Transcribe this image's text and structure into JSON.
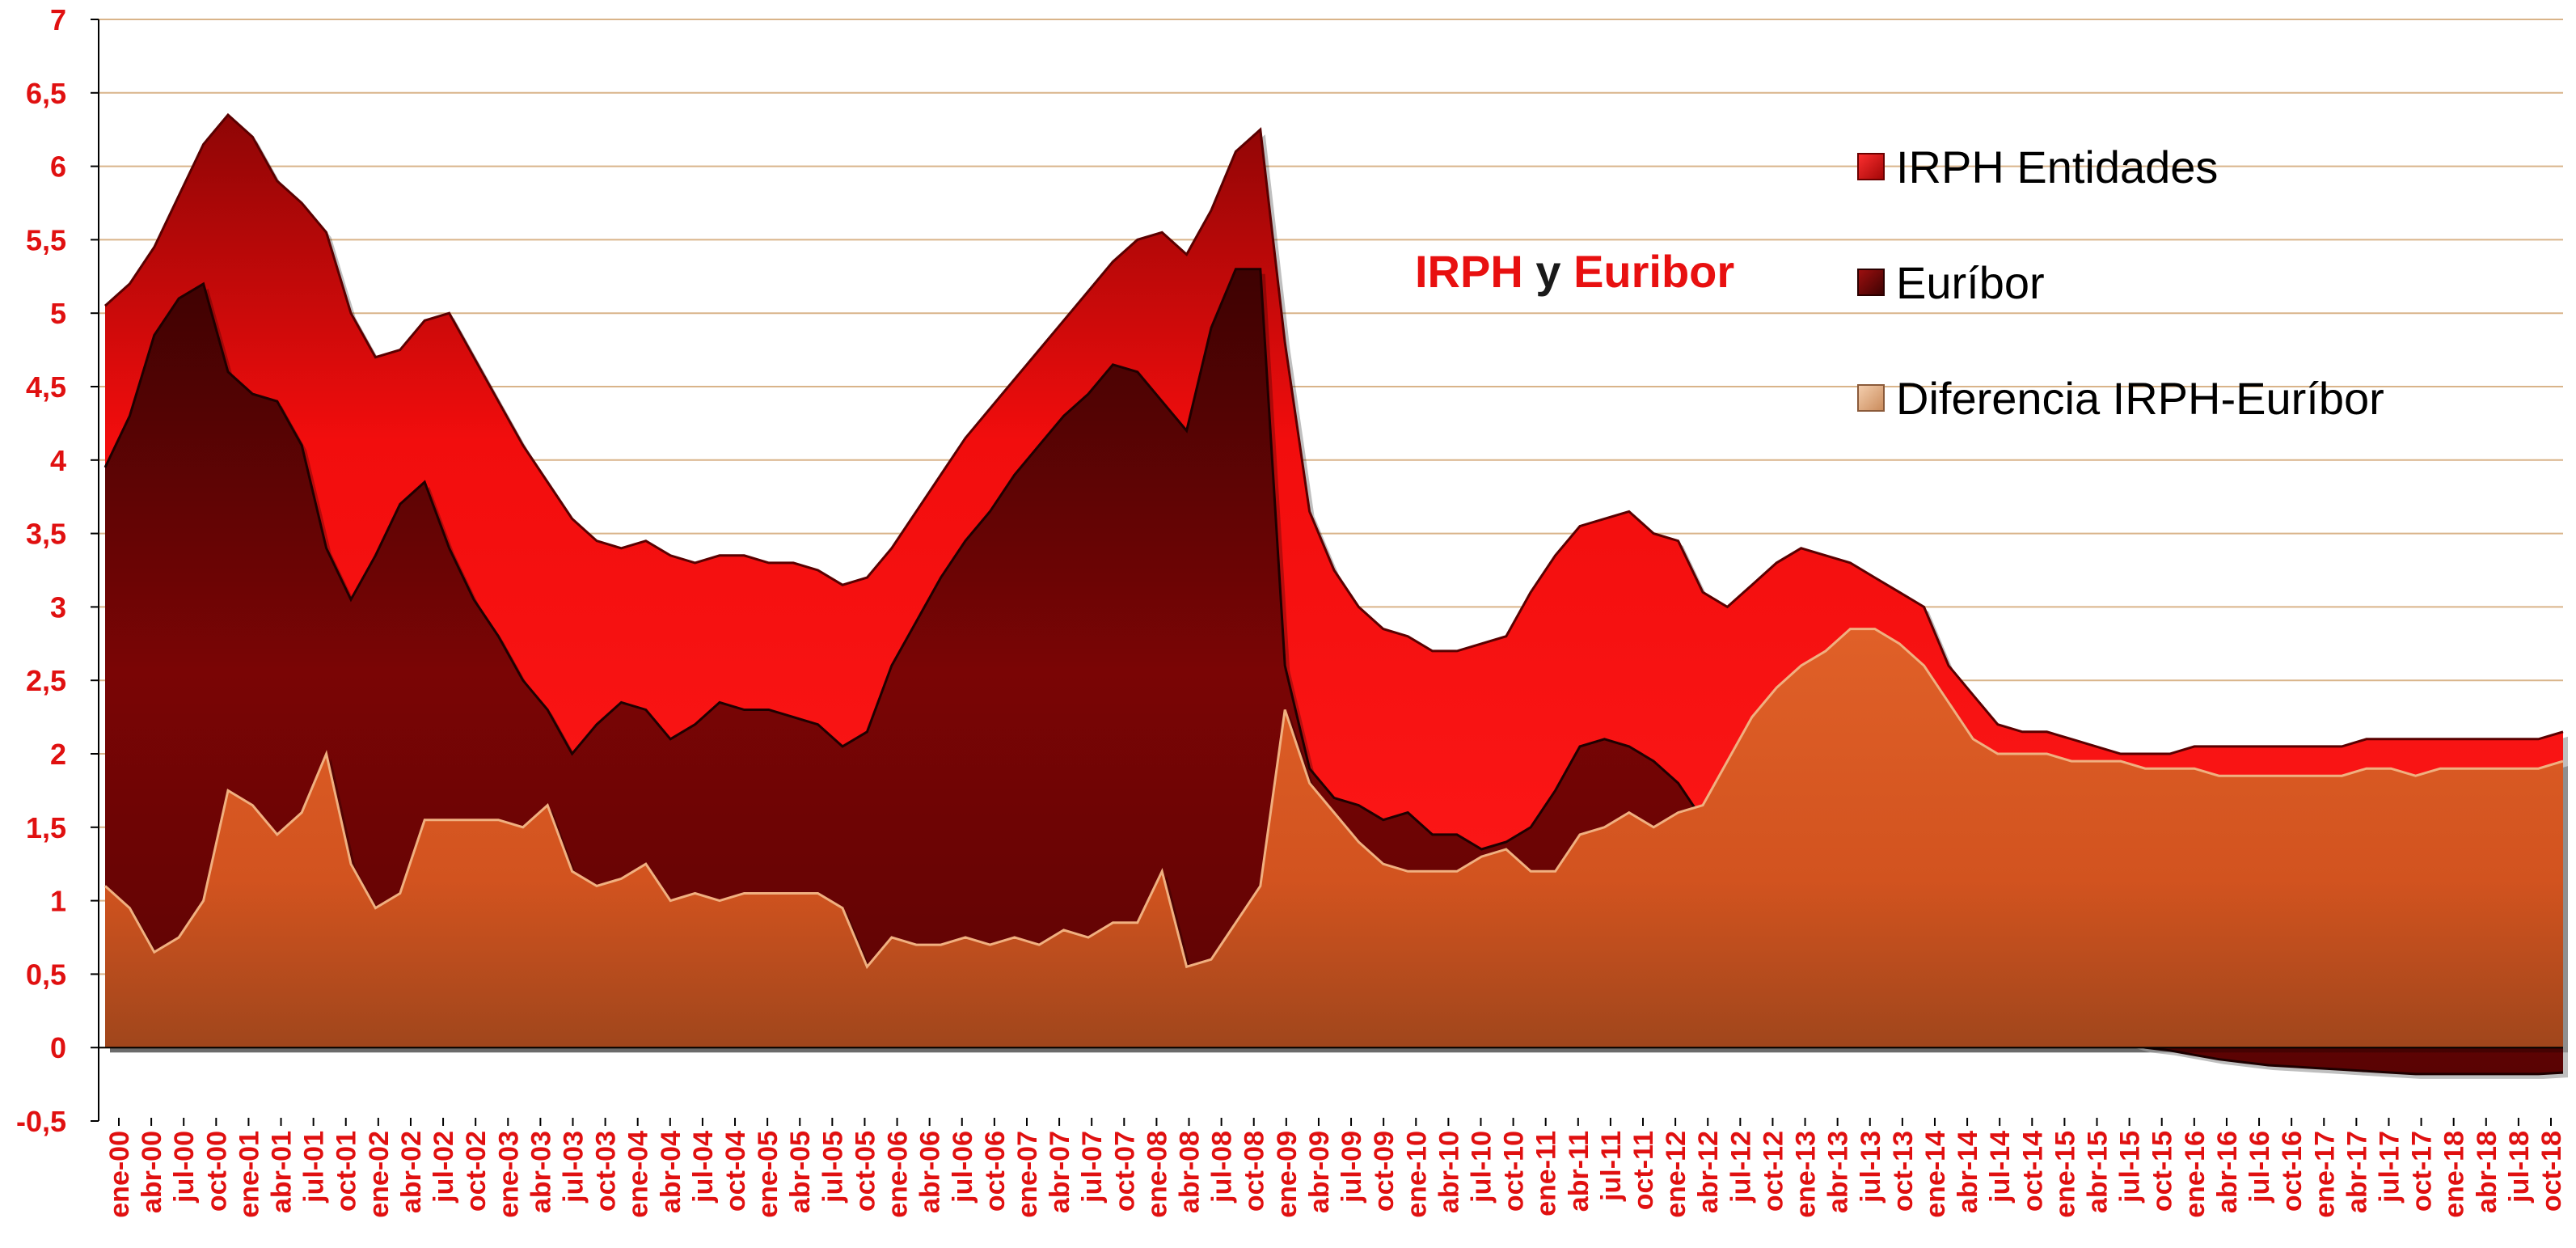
{
  "chart_data": {
    "type": "area",
    "title_parts": [
      "IRPH",
      " y ",
      "Euribor"
    ],
    "colors": {
      "irph": "#f20d0d",
      "irph_top": "#9e0606",
      "euribor": "#7a0505",
      "euribor_top": "#4a0202",
      "diff": "#d9531e",
      "diff_low": "#a34a1e",
      "diff_legend": "#e8b48c",
      "tick_labels": "#e01010",
      "gridline": "#d9b48a"
    },
    "ylim": [
      -0.5,
      7
    ],
    "yticks": [
      "7",
      "6,5",
      "6",
      "5,5",
      "5",
      "4,5",
      "4",
      "3,5",
      "3",
      "2,5",
      "2",
      "1,5",
      "1",
      "0,5",
      "0",
      "-0,5"
    ],
    "ytick_values": [
      7,
      6.5,
      6,
      5.5,
      5,
      4.5,
      4,
      3.5,
      3,
      2.5,
      2,
      1.5,
      1,
      0.5,
      0,
      -0.5
    ],
    "xtick_labels": [
      "ene-00",
      "abr-00",
      "jul-00",
      "oct-00",
      "ene-01",
      "abr-01",
      "jul-01",
      "oct-01",
      "ene-02",
      "abr-02",
      "jul-02",
      "oct-02",
      "ene-03",
      "abr-03",
      "jul-03",
      "oct-03",
      "ene-04",
      "abr-04",
      "jul-04",
      "oct-04",
      "ene-05",
      "abr-05",
      "jul-05",
      "oct-05",
      "ene-06",
      "abr-06",
      "jul-06",
      "oct-06",
      "ene-07",
      "abr-07",
      "jul-07",
      "oct-07",
      "ene-08",
      "abr-08",
      "jul-08",
      "oct-08",
      "ene-09",
      "abr-09",
      "jul-09",
      "oct-09",
      "ene-10",
      "abr-10",
      "jul-10",
      "oct-10",
      "ene-11",
      "abr-11",
      "jul-11",
      "oct-11",
      "ene-12",
      "abr-12",
      "jul-12",
      "oct-12",
      "ene-13",
      "abr-13",
      "jul-13",
      "oct-13",
      "ene-14",
      "abr-14",
      "jul-14",
      "oct-14",
      "ene-15",
      "abr-15",
      "jul-15",
      "oct-15",
      "ene-16",
      "abr-16",
      "jul-16",
      "oct-16",
      "ene-17",
      "abr-17",
      "jul-17",
      "oct-17",
      "ene-18",
      "abr-18",
      "jul-18",
      "oct-18"
    ],
    "legend": {
      "placement": "top-right",
      "entries": [
        "IRPH Entidades",
        "Euríbor",
        "Diferencia IRPH-Euríbor"
      ]
    },
    "grid": true,
    "series": [
      {
        "name": "IRPH Entidades",
        "values": [
          5.05,
          5.2,
          5.45,
          5.8,
          6.15,
          6.35,
          6.2,
          5.9,
          5.75,
          5.55,
          5.0,
          4.7,
          4.75,
          4.95,
          5.0,
          4.7,
          4.4,
          4.1,
          3.85,
          3.6,
          3.45,
          3.4,
          3.45,
          3.35,
          3.3,
          3.35,
          3.35,
          3.3,
          3.3,
          3.25,
          3.15,
          3.2,
          3.4,
          3.65,
          3.9,
          4.15,
          4.35,
          4.55,
          4.75,
          4.95,
          5.15,
          5.35,
          5.5,
          5.55,
          5.4,
          5.7,
          6.1,
          6.25,
          4.8,
          3.65,
          3.25,
          3.0,
          2.85,
          2.8,
          2.7,
          2.7,
          2.75,
          2.8,
          3.1,
          3.35,
          3.55,
          3.6,
          3.65,
          3.5,
          3.45,
          3.1,
          3.0,
          3.15,
          3.3,
          3.4,
          3.35,
          3.3,
          3.2,
          3.1,
          3.0,
          2.6,
          2.4,
          2.2,
          2.15,
          2.15,
          2.1,
          2.05,
          2.0,
          2.0,
          2.0,
          2.05,
          2.05,
          2.05,
          2.05,
          2.05,
          2.05,
          2.05,
          2.1,
          2.1,
          2.1,
          2.1,
          2.1,
          2.1,
          2.1,
          2.1,
          2.15
        ]
      },
      {
        "name": "Euríbor",
        "values": [
          3.95,
          4.3,
          4.85,
          5.1,
          5.2,
          4.6,
          4.45,
          4.4,
          4.1,
          3.4,
          3.05,
          3.35,
          3.7,
          3.85,
          3.4,
          3.05,
          2.8,
          2.5,
          2.3,
          2.0,
          2.2,
          2.35,
          2.3,
          2.1,
          2.2,
          2.35,
          2.3,
          2.3,
          2.25,
          2.2,
          2.05,
          2.15,
          2.6,
          2.9,
          3.2,
          3.45,
          3.65,
          3.9,
          4.1,
          4.3,
          4.45,
          4.65,
          4.6,
          4.4,
          4.2,
          4.9,
          5.3,
          5.3,
          2.6,
          1.9,
          1.7,
          1.65,
          1.55,
          1.6,
          1.45,
          1.45,
          1.35,
          1.4,
          1.5,
          1.75,
          2.05,
          2.1,
          2.05,
          1.95,
          1.8,
          1.55,
          1.3,
          1.2,
          1.15,
          1.15,
          1.1,
          1.05,
          0.95,
          0.85,
          0.75,
          0.6,
          0.45,
          0.4,
          0.3,
          0.2,
          0.15,
          0.1,
          0.05,
          0.0,
          -0.02,
          -0.05,
          -0.08,
          -0.1,
          -0.12,
          -0.13,
          -0.14,
          -0.15,
          -0.16,
          -0.17,
          -0.18,
          -0.18,
          -0.18,
          -0.18,
          -0.18,
          -0.18,
          -0.17
        ]
      },
      {
        "name": "Diferencia IRPH-Euríbor",
        "values": [
          1.1,
          0.95,
          0.65,
          0.75,
          1.0,
          1.75,
          1.65,
          1.45,
          1.6,
          2.0,
          1.25,
          0.95,
          1.05,
          1.55,
          1.55,
          1.55,
          1.55,
          1.5,
          1.65,
          1.2,
          1.1,
          1.15,
          1.25,
          1.0,
          1.05,
          1.0,
          1.05,
          1.05,
          1.05,
          1.05,
          0.95,
          0.55,
          0.75,
          0.7,
          0.7,
          0.75,
          0.7,
          0.75,
          0.7,
          0.8,
          0.75,
          0.85,
          0.85,
          1.2,
          0.55,
          0.6,
          0.85,
          1.1,
          2.3,
          1.8,
          1.6,
          1.4,
          1.25,
          1.2,
          1.2,
          1.2,
          1.3,
          1.35,
          1.2,
          1.2,
          1.45,
          1.5,
          1.6,
          1.5,
          1.6,
          1.65,
          1.95,
          2.25,
          2.45,
          2.6,
          2.7,
          2.85,
          2.85,
          2.75,
          2.6,
          2.35,
          2.1,
          2.0,
          2.0,
          2.0,
          1.95,
          1.95,
          1.95,
          1.9,
          1.9,
          1.9,
          1.85,
          1.85,
          1.85,
          1.85,
          1.85,
          1.85,
          1.9,
          1.9,
          1.85,
          1.9,
          1.9,
          1.9,
          1.9,
          1.9,
          1.95
        ]
      }
    ]
  }
}
